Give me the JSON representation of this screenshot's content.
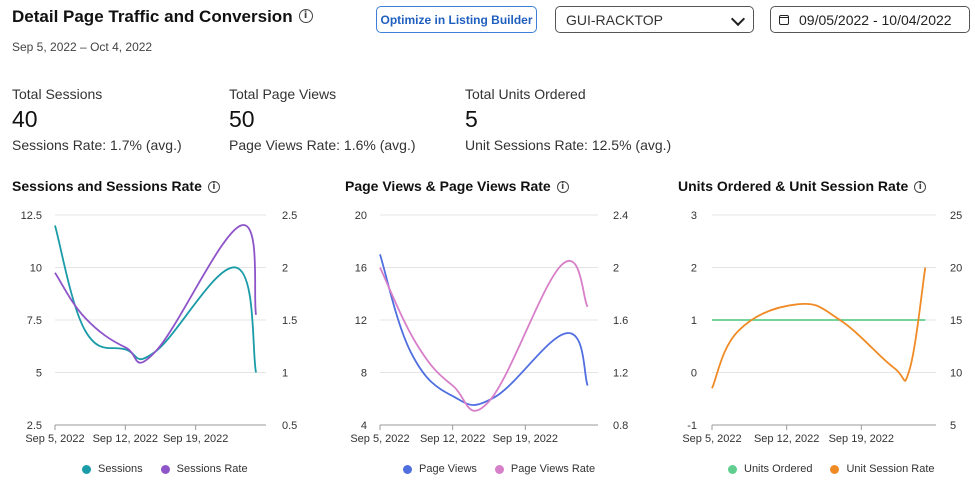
{
  "header": {
    "title": "Detail Page Traffic and Conversion",
    "subtitle": "Sep 5, 2022 – Oct 4, 2022",
    "optimize_button": "Optimize in Listing Builder",
    "store_select": "GUI-RACKTOP",
    "date_range": "09/05/2022 - 10/04/2022"
  },
  "metrics": [
    {
      "label": "Total Sessions",
      "value": "40",
      "rate": "Sessions Rate: 1.7% (avg.)"
    },
    {
      "label": "Total Page Views",
      "value": "50",
      "rate": "Page Views Rate: 1.6% (avg.)"
    },
    {
      "label": "Total Units Ordered",
      "value": "5",
      "rate": "Unit Sessions Rate: 12.5% (avg.)"
    }
  ],
  "chart_data": [
    {
      "type": "line",
      "title": "Sessions and Sessions Rate",
      "x_tick_labels": [
        "Sep 5, 2022",
        "Sep 12, 2022",
        "Sep 19, 2022"
      ],
      "x_ticks": [
        0,
        7,
        14
      ],
      "x_domain": [
        0,
        21
      ],
      "y_left": {
        "ticks": [
          "12.5",
          "10",
          "7.5",
          "5",
          "2.5"
        ],
        "lim": [
          2.5,
          12.5
        ]
      },
      "y_right": {
        "ticks": [
          "2.5",
          "2",
          "1.5",
          "1",
          "0.5"
        ],
        "lim": [
          0.5,
          2.5
        ]
      },
      "series": [
        {
          "name": "Sessions",
          "axis": "left",
          "color": "#1a9ba8",
          "points": [
            [
              0,
              12
            ],
            [
              3,
              7
            ],
            [
              7,
              6.1
            ],
            [
              10,
              6
            ],
            [
              18,
              10
            ],
            [
              20,
              5
            ]
          ]
        },
        {
          "name": "Sessions Rate",
          "axis": "right",
          "color": "#8e54c9",
          "points": [
            [
              0,
              1.95
            ],
            [
              3,
              1.52
            ],
            [
              7,
              1.24
            ],
            [
              10,
              1.2
            ],
            [
              18.5,
              2.4
            ],
            [
              20,
              1.55
            ]
          ]
        }
      ]
    },
    {
      "type": "line",
      "title": "Page Views & Page Views Rate",
      "x_tick_labels": [
        "Sep 5, 2022",
        "Sep 12, 2022",
        "Sep 19, 2022"
      ],
      "x_ticks": [
        0,
        7,
        14
      ],
      "x_domain": [
        0,
        21
      ],
      "y_left": {
        "ticks": [
          "20",
          "16",
          "12",
          "8",
          "4"
        ],
        "lim": [
          4,
          20
        ]
      },
      "y_right": {
        "ticks": [
          "2.4",
          "2",
          "1.6",
          "1.2",
          "0.8"
        ],
        "lim": [
          0.8,
          2.4
        ]
      },
      "series": [
        {
          "name": "Page Views",
          "axis": "left",
          "color": "#4f6ee0",
          "points": [
            [
              0,
              17
            ],
            [
              3,
              9.5
            ],
            [
              7,
              6.2
            ],
            [
              11,
              6.1
            ],
            [
              18,
              11
            ],
            [
              20,
              7
            ]
          ]
        },
        {
          "name": "Page Views Rate",
          "axis": "right",
          "color": "#d77fc9",
          "points": [
            [
              0,
              2
            ],
            [
              3.5,
              1.42
            ],
            [
              7,
              1.1
            ],
            [
              10.5,
              0.98
            ],
            [
              17.5,
              2.02
            ],
            [
              20,
              1.7
            ]
          ]
        }
      ]
    },
    {
      "type": "line",
      "title": "Units Ordered & Unit Session Rate",
      "x_tick_labels": [
        "Sep 5, 2022",
        "Sep 12, 2022",
        "Sep 19, 2022"
      ],
      "x_ticks": [
        0,
        7,
        14
      ],
      "x_domain": [
        0,
        21
      ],
      "y_left": {
        "ticks": [
          "3",
          "2",
          "1",
          "0",
          "-1"
        ],
        "lim": [
          -1,
          3
        ]
      },
      "y_right": {
        "ticks": [
          "25",
          "20",
          "15",
          "10",
          "5"
        ],
        "lim": [
          5,
          25
        ]
      },
      "series": [
        {
          "name": "Units Ordered",
          "axis": "left",
          "color": "#5fce8e",
          "points": [
            [
              0,
              1
            ],
            [
              20,
              1
            ]
          ]
        },
        {
          "name": "Unit Session Rate",
          "axis": "right",
          "color": "#f08a24",
          "points": [
            [
              0,
              8.5
            ],
            [
              2.5,
              14
            ],
            [
              8,
              16.5
            ],
            [
              12,
              15
            ],
            [
              17,
              10.5
            ],
            [
              18.5,
              10.2
            ],
            [
              20,
              20
            ]
          ]
        }
      ]
    }
  ]
}
